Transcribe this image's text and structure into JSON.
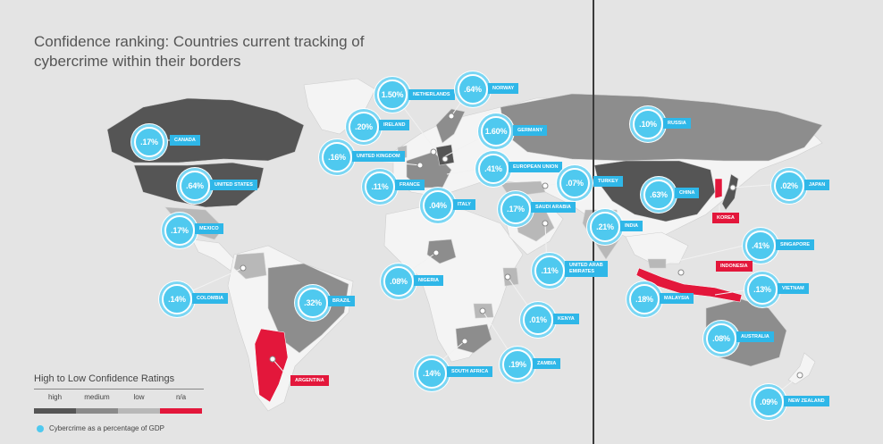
{
  "title": "Confidence ranking: Countries current tracking of cybercrime within their borders",
  "colors": {
    "high": "#555555",
    "medium": "#8a8a8a",
    "low": "#b8b8b8",
    "na": "#e3173b",
    "bubble": "#4fc9ef",
    "tag": "#2fb7e8"
  },
  "legend": {
    "title": "High to Low Confidence Ratings",
    "levels": [
      "high",
      "medium",
      "low",
      "n/a"
    ],
    "gdp_note": "Cybercrime as a percentage of GDP"
  },
  "countries": [
    {
      "name": "CANADA",
      "value": ".17%",
      "confidence": "high"
    },
    {
      "name": "UNITED STATES",
      "value": ".64%",
      "confidence": "high"
    },
    {
      "name": "MEXICO",
      "value": ".17%",
      "confidence": "low"
    },
    {
      "name": "COLOMBIA",
      "value": ".14%",
      "confidence": "low"
    },
    {
      "name": "BRAZIL",
      "value": ".32%",
      "confidence": "medium"
    },
    {
      "name": "ARGENTINA",
      "value": "",
      "confidence": "n/a"
    },
    {
      "name": "NETHERLANDS",
      "value": "1.50%",
      "confidence": "high"
    },
    {
      "name": "NORWAY",
      "value": ".64%",
      "confidence": "medium"
    },
    {
      "name": "IRELAND",
      "value": ".20%",
      "confidence": "low"
    },
    {
      "name": "GERMANY",
      "value": "1.60%",
      "confidence": "high"
    },
    {
      "name": "UNITED KINGDOM",
      "value": ".16%",
      "confidence": "medium"
    },
    {
      "name": "EUROPEAN UNION",
      "value": ".41%",
      "confidence": "medium"
    },
    {
      "name": "FRANCE",
      "value": ".11%",
      "confidence": "medium"
    },
    {
      "name": "ITALY",
      "value": ".04%",
      "confidence": "medium"
    },
    {
      "name": "TURKEY",
      "value": ".07%",
      "confidence": "low"
    },
    {
      "name": "SAUDI ARABIA",
      "value": ".17%",
      "confidence": "low"
    },
    {
      "name": "UNITED ARAB EMIRATES",
      "value": ".11%",
      "confidence": "low"
    },
    {
      "name": "NIGERIA",
      "value": ".08%",
      "confidence": "medium"
    },
    {
      "name": "KENYA",
      "value": ".01%",
      "confidence": "low"
    },
    {
      "name": "SOUTH AFRICA",
      "value": ".14%",
      "confidence": "medium"
    },
    {
      "name": "ZAMBIA",
      "value": ".19%",
      "confidence": "low"
    },
    {
      "name": "RUSSIA",
      "value": ".10%",
      "confidence": "medium"
    },
    {
      "name": "CHINA",
      "value": ".63%",
      "confidence": "high"
    },
    {
      "name": "KOREA",
      "value": "",
      "confidence": "n/a"
    },
    {
      "name": "JAPAN",
      "value": ".02%",
      "confidence": "high"
    },
    {
      "name": "INDIA",
      "value": ".21%",
      "confidence": "low"
    },
    {
      "name": "SINGAPORE",
      "value": ".41%",
      "confidence": "low"
    },
    {
      "name": "INDONESIA",
      "value": "",
      "confidence": "n/a"
    },
    {
      "name": "MALAYSIA",
      "value": ".18%",
      "confidence": "low"
    },
    {
      "name": "VIETNAM",
      "value": ".13%",
      "confidence": "low"
    },
    {
      "name": "AUSTRALIA",
      "value": ".08%",
      "confidence": "medium"
    },
    {
      "name": "NEW ZEALAND",
      "value": ".09%",
      "confidence": "low"
    }
  ]
}
